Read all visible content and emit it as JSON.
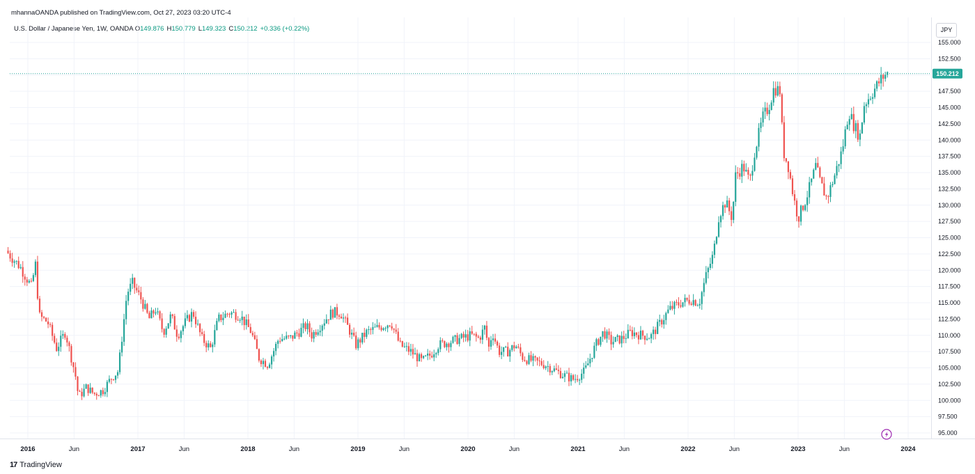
{
  "header": {
    "published_text": "mhannaOANDA published on TradingView.com, Oct 27, 2023 03:20 UTC-4",
    "symbol_label": "U.S. Dollar / Japanese Yen, 1W, OANDA",
    "open_label": "O",
    "open_value": "149.876",
    "high_label": "H",
    "high_value": "150.779",
    "low_label": "L",
    "low_value": "149.323",
    "close_label": "C",
    "close_value": "150.212",
    "change_value": "+0.336 (+0.22%)",
    "currency": "JPY"
  },
  "footer": {
    "brand": "TradingView",
    "logo_text": "17"
  },
  "colors": {
    "up": "#26a69a",
    "down": "#ef5350",
    "grid": "#f0f3fa",
    "price_line": "#26a69a",
    "accent": "#9c27b0"
  },
  "icons": {
    "flash": "lightning-icon",
    "logo": "tradingview-logo-icon"
  },
  "chart_data": {
    "type": "candlestick",
    "title": "U.S. Dollar / Japanese Yen, 1W, OANDA",
    "xlabel": "",
    "ylabel": "JPY",
    "ylim": [
      93.7,
      156.5
    ],
    "y_ticks": [
      "95.000",
      "97.500",
      "100.000",
      "102.500",
      "105.000",
      "107.500",
      "110.000",
      "112.500",
      "115.000",
      "117.500",
      "120.000",
      "122.500",
      "125.000",
      "127.500",
      "130.000",
      "132.500",
      "135.000",
      "137.500",
      "140.000",
      "142.500",
      "145.000",
      "147.500",
      "150.000",
      "152.500",
      "155.000"
    ],
    "x_ticks": [
      {
        "label": "2016",
        "t": 2016.0,
        "bold": true
      },
      {
        "label": "Jun",
        "t": 2016.42,
        "bold": false
      },
      {
        "label": "2017",
        "t": 2017.0,
        "bold": true
      },
      {
        "label": "Jun",
        "t": 2017.42,
        "bold": false
      },
      {
        "label": "2018",
        "t": 2018.0,
        "bold": true
      },
      {
        "label": "Jun",
        "t": 2018.42,
        "bold": false
      },
      {
        "label": "2019",
        "t": 2019.0,
        "bold": true
      },
      {
        "label": "Jun",
        "t": 2019.42,
        "bold": false
      },
      {
        "label": "2020",
        "t": 2020.0,
        "bold": true
      },
      {
        "label": "Jun",
        "t": 2020.42,
        "bold": false
      },
      {
        "label": "2021",
        "t": 2021.0,
        "bold": true
      },
      {
        "label": "Jun",
        "t": 2021.42,
        "bold": false
      },
      {
        "label": "2022",
        "t": 2022.0,
        "bold": true
      },
      {
        "label": "Jun",
        "t": 2022.42,
        "bold": false
      },
      {
        "label": "2023",
        "t": 2023.0,
        "bold": true
      },
      {
        "label": "Jun",
        "t": 2023.42,
        "bold": false
      },
      {
        "label": "2024",
        "t": 2024.0,
        "bold": true
      }
    ],
    "last_price": 150.212,
    "last_price_label": "150.212",
    "anchors": [
      [
        2015.82,
        123.0
      ],
      [
        2015.95,
        120.5
      ],
      [
        2016.05,
        117.5
      ],
      [
        2016.09,
        121.0
      ],
      [
        2016.12,
        113.0
      ],
      [
        2016.2,
        112.0
      ],
      [
        2016.28,
        108.0
      ],
      [
        2016.36,
        110.5
      ],
      [
        2016.45,
        104.0
      ],
      [
        2016.48,
        100.5
      ],
      [
        2016.55,
        102.0
      ],
      [
        2016.62,
        101.0
      ],
      [
        2016.7,
        101.5
      ],
      [
        2016.78,
        103.5
      ],
      [
        2016.84,
        104.5
      ],
      [
        2016.88,
        110.5
      ],
      [
        2016.92,
        116.5
      ],
      [
        2016.97,
        118.0
      ],
      [
        2017.05,
        115.5
      ],
      [
        2017.12,
        112.5
      ],
      [
        2017.18,
        114.0
      ],
      [
        2017.25,
        110.5
      ],
      [
        2017.32,
        113.0
      ],
      [
        2017.38,
        110.0
      ],
      [
        2017.45,
        112.0
      ],
      [
        2017.52,
        113.5
      ],
      [
        2017.6,
        109.5
      ],
      [
        2017.68,
        108.0
      ],
      [
        2017.75,
        112.5
      ],
      [
        2017.85,
        113.5
      ],
      [
        2017.95,
        113.0
      ],
      [
        2018.05,
        110.5
      ],
      [
        2018.12,
        106.5
      ],
      [
        2018.2,
        105.5
      ],
      [
        2018.3,
        109.5
      ],
      [
        2018.4,
        109.5
      ],
      [
        2018.48,
        110.5
      ],
      [
        2018.55,
        111.5
      ],
      [
        2018.6,
        110.0
      ],
      [
        2018.7,
        112.0
      ],
      [
        2018.78,
        113.5
      ],
      [
        2018.86,
        113.5
      ],
      [
        2018.95,
        110.5
      ],
      [
        2019.0,
        108.5
      ],
      [
        2019.1,
        110.5
      ],
      [
        2019.25,
        111.5
      ],
      [
        2019.32,
        112.0
      ],
      [
        2019.4,
        108.5
      ],
      [
        2019.5,
        107.5
      ],
      [
        2019.6,
        106.0
      ],
      [
        2019.68,
        107.0
      ],
      [
        2019.75,
        108.5
      ],
      [
        2019.85,
        109.0
      ],
      [
        2019.95,
        109.5
      ],
      [
        2020.05,
        110.0
      ],
      [
        2020.12,
        109.5
      ],
      [
        2020.18,
        111.5
      ],
      [
        2020.2,
        107.5
      ],
      [
        2020.24,
        110.5
      ],
      [
        2020.3,
        107.5
      ],
      [
        2020.38,
        107.5
      ],
      [
        2020.45,
        108.5
      ],
      [
        2020.52,
        106.5
      ],
      [
        2020.62,
        106.0
      ],
      [
        2020.72,
        105.5
      ],
      [
        2020.82,
        104.5
      ],
      [
        2020.9,
        103.8
      ],
      [
        2020.98,
        103.2
      ],
      [
        2021.08,
        104.5
      ],
      [
        2021.18,
        108.5
      ],
      [
        2021.25,
        110.5
      ],
      [
        2021.32,
        109.0
      ],
      [
        2021.42,
        109.5
      ],
      [
        2021.5,
        110.5
      ],
      [
        2021.6,
        110.0
      ],
      [
        2021.68,
        109.8
      ],
      [
        2021.75,
        111.5
      ],
      [
        2021.85,
        114.0
      ],
      [
        2021.95,
        115.0
      ],
      [
        2022.05,
        115.5
      ],
      [
        2022.12,
        115.0
      ],
      [
        2022.18,
        119.0
      ],
      [
        2022.25,
        122.5
      ],
      [
        2022.3,
        128.5
      ],
      [
        2022.36,
        130.5
      ],
      [
        2022.42,
        128.0
      ],
      [
        2022.45,
        134.5
      ],
      [
        2022.52,
        136.0
      ],
      [
        2022.58,
        133.5
      ],
      [
        2022.62,
        138.0
      ],
      [
        2022.7,
        143.5
      ],
      [
        2022.75,
        145.0
      ],
      [
        2022.8,
        148.0
      ],
      [
        2022.86,
        147.5
      ],
      [
        2022.88,
        138.5
      ],
      [
        2022.93,
        136.0
      ],
      [
        2022.98,
        131.0
      ],
      [
        2023.02,
        128.0
      ],
      [
        2023.08,
        130.5
      ],
      [
        2023.12,
        132.5
      ],
      [
        2023.18,
        136.0
      ],
      [
        2023.22,
        133.5
      ],
      [
        2023.28,
        131.0
      ],
      [
        2023.35,
        134.5
      ],
      [
        2023.42,
        138.5
      ],
      [
        2023.48,
        144.5
      ],
      [
        2023.52,
        142.5
      ],
      [
        2023.58,
        140.5
      ],
      [
        2023.62,
        145.5
      ],
      [
        2023.7,
        147.5
      ],
      [
        2023.78,
        149.5
      ],
      [
        2023.82,
        150.2
      ]
    ]
  }
}
